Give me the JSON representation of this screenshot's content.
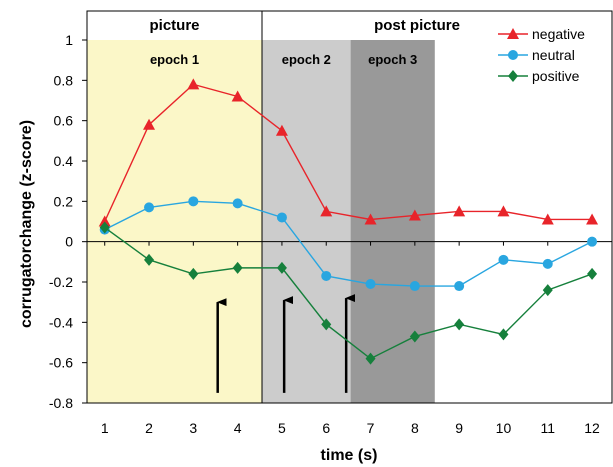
{
  "chart_data": {
    "type": "line",
    "xlabel": "time (s)",
    "ylabel": "corrugatorchange (z-score)",
    "x": [
      1,
      2,
      3,
      4,
      5,
      6,
      7,
      8,
      9,
      10,
      11,
      12
    ],
    "xlim": [
      0.6,
      12.45
    ],
    "ylim": [
      -0.8,
      1.0
    ],
    "yticks": [
      -0.8,
      -0.6,
      -0.4,
      -0.2,
      0,
      0.2,
      0.4,
      0.6,
      0.8,
      1
    ],
    "ytick_labels": [
      "-0.8",
      "-0.6",
      "-0.4",
      "-0.2",
      "0",
      "0.2",
      "0.4",
      "0.6",
      "0.8",
      "1"
    ],
    "xtick_labels": [
      "1",
      "2",
      "3",
      "4",
      "5",
      "6",
      "7",
      "8",
      "9",
      "10",
      "11",
      "12"
    ],
    "grid": false,
    "legend_position": "top-right",
    "series": [
      {
        "name": "negative",
        "color": "#e8242a",
        "marker": "triangle",
        "values": [
          0.1,
          0.58,
          0.78,
          0.72,
          0.55,
          0.15,
          0.11,
          0.13,
          0.15,
          0.15,
          0.11,
          0.11
        ]
      },
      {
        "name": "neutral",
        "color": "#29a6e0",
        "marker": "circle",
        "values": [
          0.06,
          0.17,
          0.2,
          0.19,
          0.12,
          -0.17,
          -0.21,
          -0.22,
          -0.22,
          -0.09,
          -0.11,
          0.0
        ]
      },
      {
        "name": "positive",
        "color": "#16803c",
        "marker": "diamond",
        "values": [
          0.07,
          -0.09,
          -0.16,
          -0.13,
          -0.13,
          -0.41,
          -0.58,
          -0.47,
          -0.41,
          -0.46,
          -0.24,
          -0.16
        ]
      }
    ],
    "regions": [
      {
        "label": "epoch 1",
        "from": 0.6,
        "to": 4.55,
        "color": "#fbf7c8"
      },
      {
        "label": "epoch 2",
        "from": 4.55,
        "to": 6.55,
        "color": "#cccccc"
      },
      {
        "label": "epoch 3",
        "from": 6.55,
        "to": 8.45,
        "color": "#999999"
      }
    ],
    "phases": [
      {
        "label": "picture",
        "from": 0.6,
        "to": 4.55
      },
      {
        "label": "post picture",
        "from": 4.55,
        "to": 12.45
      }
    ],
    "arrows": [
      {
        "x": 3.55,
        "from_y": -0.75,
        "to_y": -0.28
      },
      {
        "x": 5.05,
        "from_y": -0.75,
        "to_y": -0.27
      },
      {
        "x": 6.45,
        "from_y": -0.75,
        "to_y": -0.26
      }
    ]
  }
}
